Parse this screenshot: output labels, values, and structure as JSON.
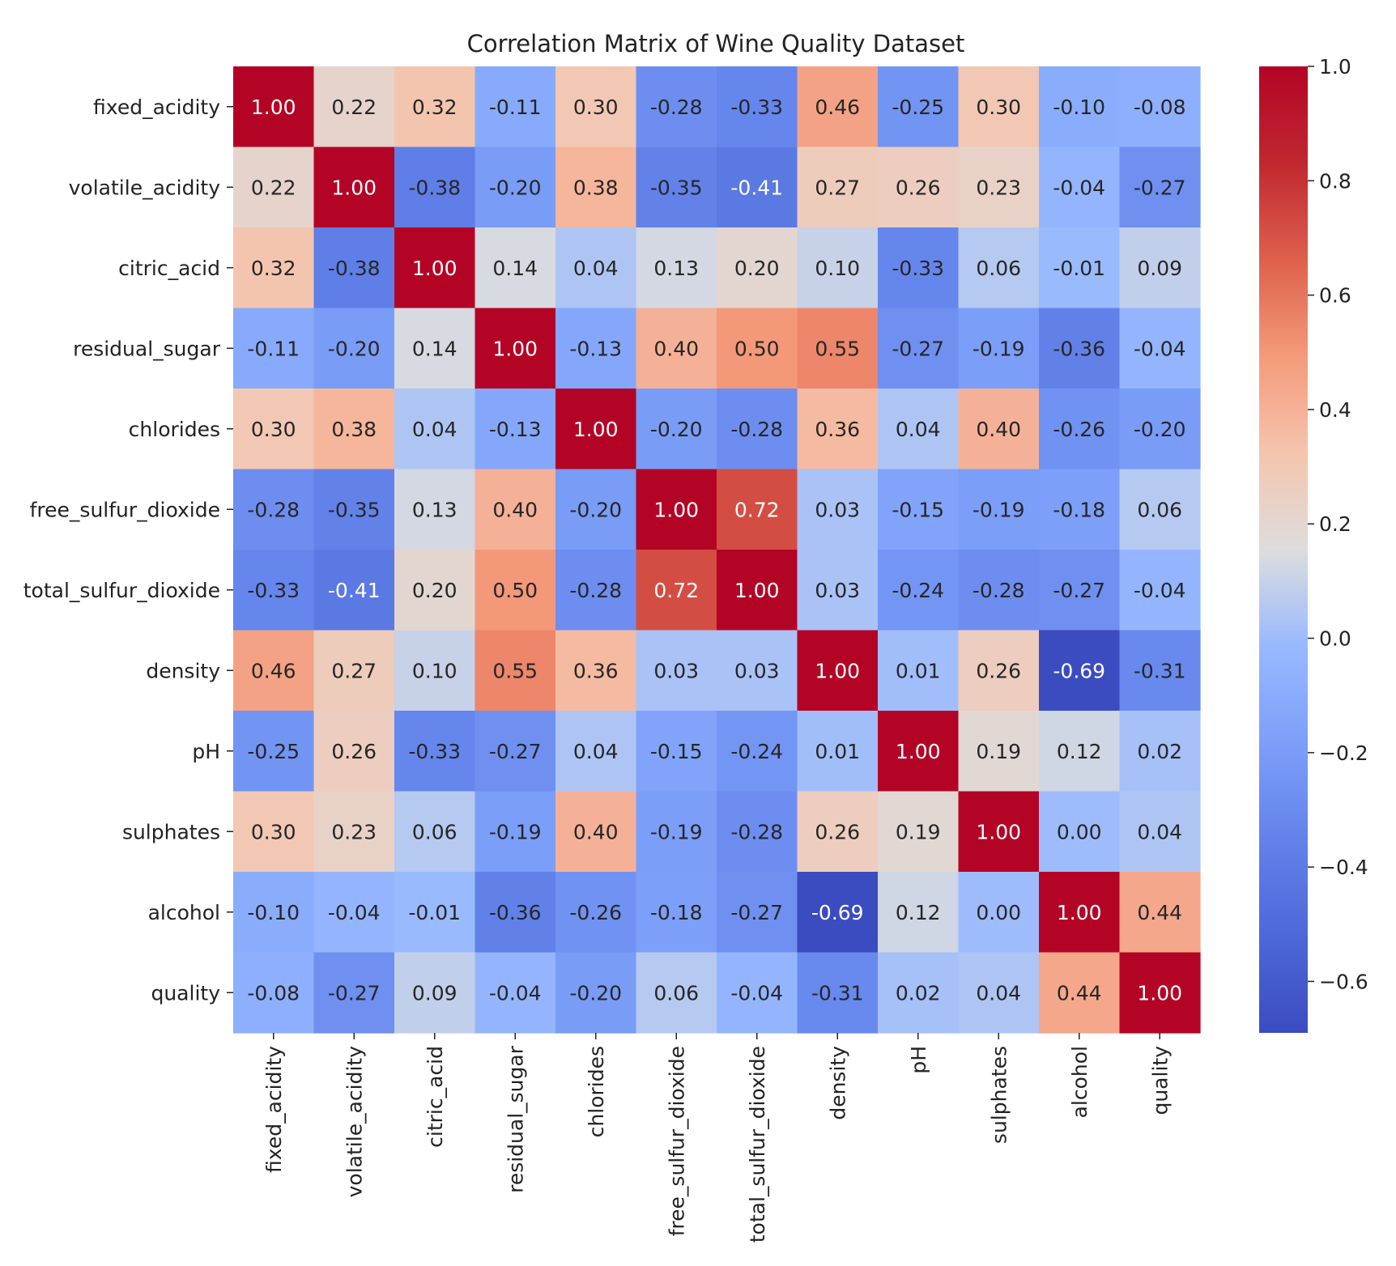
{
  "chart_data": {
    "type": "heatmap",
    "title": "Correlation Matrix of Wine Quality Dataset",
    "xlabel": "",
    "ylabel": "",
    "labels": [
      "fixed_acidity",
      "volatile_acidity",
      "citric_acid",
      "residual_sugar",
      "chlorides",
      "free_sulfur_dioxide",
      "total_sulfur_dioxide",
      "density",
      "pH",
      "sulphates",
      "alcohol",
      "quality"
    ],
    "matrix": [
      [
        1.0,
        0.22,
        0.32,
        -0.11,
        0.3,
        -0.28,
        -0.33,
        0.46,
        -0.25,
        0.3,
        -0.1,
        -0.08
      ],
      [
        0.22,
        1.0,
        -0.38,
        -0.2,
        0.38,
        -0.35,
        -0.41,
        0.27,
        0.26,
        0.23,
        -0.04,
        -0.27
      ],
      [
        0.32,
        -0.38,
        1.0,
        0.14,
        0.04,
        0.13,
        0.2,
        0.1,
        -0.33,
        0.06,
        -0.01,
        0.09
      ],
      [
        -0.11,
        -0.2,
        0.14,
        1.0,
        -0.13,
        0.4,
        0.5,
        0.55,
        -0.27,
        -0.19,
        -0.36,
        -0.04
      ],
      [
        0.3,
        0.38,
        0.04,
        -0.13,
        1.0,
        -0.2,
        -0.28,
        0.36,
        0.04,
        0.4,
        -0.26,
        -0.2
      ],
      [
        -0.28,
        -0.35,
        0.13,
        0.4,
        -0.2,
        1.0,
        0.72,
        0.03,
        -0.15,
        -0.19,
        -0.18,
        0.06
      ],
      [
        -0.33,
        -0.41,
        0.2,
        0.5,
        -0.28,
        0.72,
        1.0,
        0.03,
        -0.24,
        -0.28,
        -0.27,
        -0.04
      ],
      [
        0.46,
        0.27,
        0.1,
        0.55,
        0.36,
        0.03,
        0.03,
        1.0,
        0.01,
        0.26,
        -0.69,
        -0.31
      ],
      [
        -0.25,
        0.26,
        -0.33,
        -0.27,
        0.04,
        -0.15,
        -0.24,
        0.01,
        1.0,
        0.19,
        0.12,
        0.02
      ],
      [
        0.3,
        0.23,
        0.06,
        -0.19,
        0.4,
        -0.19,
        -0.28,
        0.26,
        0.19,
        1.0,
        -0.0,
        0.04
      ],
      [
        -0.1,
        -0.04,
        -0.01,
        -0.36,
        -0.26,
        -0.18,
        -0.27,
        -0.69,
        0.12,
        -0.0,
        1.0,
        0.44
      ],
      [
        -0.08,
        -0.27,
        0.09,
        -0.04,
        -0.2,
        0.06,
        -0.04,
        -0.31,
        0.02,
        0.04,
        0.44,
        1.0
      ]
    ],
    "value_range": [
      -0.69,
      1.0
    ],
    "colormap": "coolwarm",
    "annotation_format": "2 decimals",
    "colorbar": {
      "ticks": [
        1.0,
        0.8,
        0.6,
        0.4,
        0.2,
        0.0,
        -0.2,
        -0.4,
        -0.6
      ],
      "tick_labels": [
        "1.0",
        "0.8",
        "0.6",
        "0.4",
        "0.2",
        "0.0",
        "−0.2",
        "−0.4",
        "−0.6"
      ]
    },
    "x_tick_rotation": "vertical",
    "legend_position": "right"
  },
  "colors": {
    "background": "#ffffff",
    "text": "#222222",
    "annotation_dark": "#262626",
    "annotation_light": "#ffffff",
    "cmap_low": "#3b4cc0",
    "cmap_mid": "#dddddd",
    "cmap_high": "#b40426"
  }
}
